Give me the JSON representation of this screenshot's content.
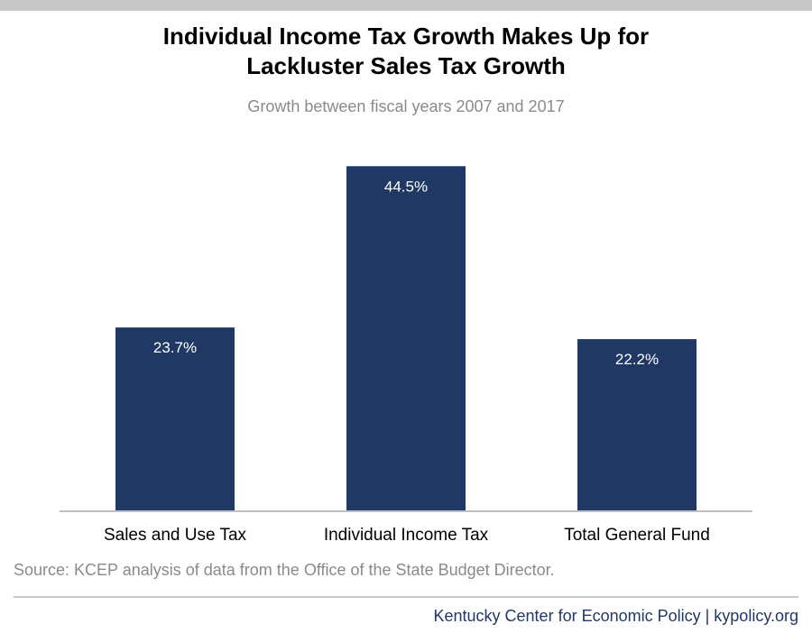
{
  "header": {
    "title_line1": "Individual Income Tax Growth Makes Up for",
    "title_line2": "Lackluster Sales Tax Growth",
    "subtitle": "Growth between fiscal years 2007 and 2017"
  },
  "chart_data": {
    "type": "bar",
    "title": "Individual Income Tax Growth Makes Up for Lackluster Sales Tax Growth",
    "subtitle": "Growth between fiscal years 2007 and 2017",
    "categories": [
      "Sales and Use Tax",
      "Individual Income Tax",
      "Total General Fund"
    ],
    "values": [
      23.7,
      44.5,
      22.2
    ],
    "value_labels": [
      "23.7%",
      "44.5%",
      "22.2%"
    ],
    "unit": "%",
    "bar_color": "#1f3864",
    "label_color": "#ffffff",
    "ylim": [
      0,
      50
    ],
    "grid": false,
    "legend": "none"
  },
  "source": "Source: KCEP analysis of data from the Office of the State Budget Director.",
  "footer": "Kentucky Center for Economic Policy | kypolicy.org",
  "colors": {
    "bar": "#1f3864",
    "subtitle_text": "#8a8a8a",
    "rule": "#c8c8c8",
    "footer_text": "#1f3864"
  }
}
